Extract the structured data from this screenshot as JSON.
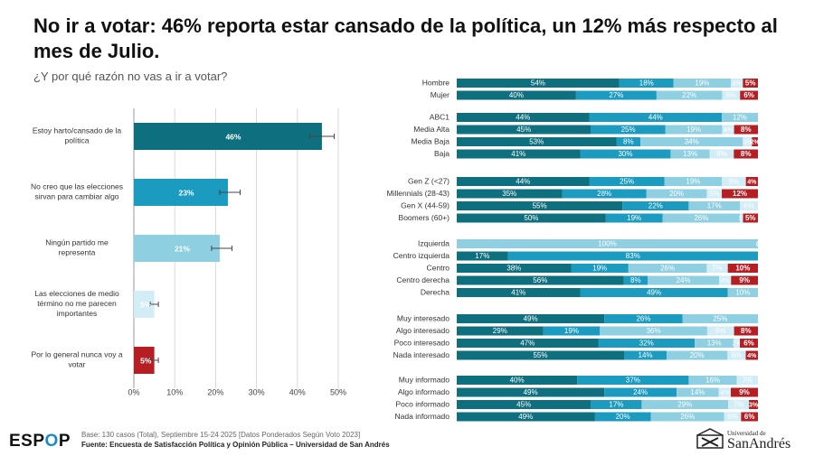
{
  "title": "No ir a votar: 46% reporta estar cansado de la política, un 12% más respecto al mes de Julio.",
  "subtitle": "¿Y por qué razón no vas a ir a votar?",
  "footer": {
    "base": "Base: 130 casos (Total), Septiembre 15-24 2025 [Datos Ponderados Según Voto 2023]",
    "source": "Fuente: Encuesta de Satisfacción Política y Opinión Pública – Universidad de San Andrés"
  },
  "logos": {
    "espop_pre": "ESP",
    "espop_o": "O",
    "espop_post": "P",
    "usa_small": "Universidad de",
    "usa_big": "SanAndrés"
  },
  "chart_data": [
    {
      "type": "bar",
      "orientation": "horizontal",
      "categories": [
        "Estoy harto/cansado de la política",
        "No creo que las elecciones sirvan para cambiar algo",
        "Ningún partido me representa",
        "Las elecciones de medio término no me parecen importantes",
        "Por lo general nunca voy a votar"
      ],
      "values": [
        46,
        23,
        21,
        5,
        5
      ],
      "labels": [
        "46%",
        "23%",
        "21%",
        "5%",
        "5%"
      ],
      "error": [
        [
          43,
          49
        ],
        [
          21,
          26
        ],
        [
          19,
          24
        ],
        [
          4,
          6
        ],
        [
          4,
          6
        ]
      ],
      "colors": [
        "#0e6f7f",
        "#1b9bbf",
        "#8ecfe2",
        "#d2edf5",
        "#b51f24"
      ],
      "label_colors": [
        "#ffffff",
        "#ffffff",
        "#ffffff",
        "#ffffff",
        "#ffffff"
      ],
      "xlim": [
        0,
        50
      ],
      "ticks": [
        "0%",
        "10%",
        "20%",
        "30%",
        "40%",
        "50%"
      ]
    },
    {
      "type": "bar",
      "orientation": "horizontal",
      "stacked": true,
      "series_names": [
        "Estoy harto/cansado de la política",
        "No creo que las elecciones sirvan para cambiar algo",
        "Ningún partido me representa",
        "Las elecciones de medio término no me parecen importantes",
        "Por lo general nunca voy a votar"
      ],
      "colors": [
        "#0e6f7f",
        "#1b9bbf",
        "#8ecfe2",
        "#d2edf5",
        "#b51f24"
      ],
      "groups": [
        {
          "rows": [
            {
              "label": "Hombre",
              "values": [
                54,
                18,
                19,
                4,
                5
              ]
            },
            {
              "label": "Mujer",
              "values": [
                40,
                27,
                22,
                6,
                6
              ]
            }
          ]
        },
        {
          "rows": [
            {
              "label": "ABC1",
              "values": [
                44,
                44,
                12,
                0,
                0
              ]
            },
            {
              "label": "Media Alta",
              "values": [
                45,
                25,
                19,
                4,
                8
              ]
            },
            {
              "label": "Media Baja",
              "values": [
                53,
                8,
                34,
                3,
                2
              ]
            },
            {
              "label": "Baja",
              "values": [
                41,
                30,
                13,
                8,
                8
              ]
            }
          ]
        },
        {
          "rows": [
            {
              "label": "Gen Z (<27)",
              "values": [
                44,
                25,
                19,
                8,
                4
              ]
            },
            {
              "label": "Millennials (28-43)",
              "values": [
                35,
                28,
                20,
                5,
                12
              ]
            },
            {
              "label": "Gen X (44-59)",
              "values": [
                55,
                22,
                17,
                6,
                0
              ]
            },
            {
              "label": "Boomers (60+)",
              "values": [
                50,
                19,
                26,
                1,
                5
              ]
            }
          ]
        },
        {
          "rows": [
            {
              "label": "Izquierda",
              "values": [
                0,
                0,
                100,
                0,
                0
              ]
            },
            {
              "label": "Centro izquierda",
              "values": [
                17,
                83,
                0,
                0,
                0
              ]
            },
            {
              "label": "Centro",
              "values": [
                38,
                19,
                26,
                7,
                10
              ]
            },
            {
              "label": "Centro derecha",
              "values": [
                56,
                8,
                24,
                4,
                9
              ]
            },
            {
              "label": "Derecha",
              "values": [
                41,
                49,
                10,
                0,
                0
              ]
            }
          ]
        },
        {
          "rows": [
            {
              "label": "Muy interesado",
              "values": [
                49,
                26,
                25,
                0,
                0
              ]
            },
            {
              "label": "Algo interesado",
              "values": [
                29,
                19,
                36,
                9,
                8
              ]
            },
            {
              "label": "Poco interesado",
              "values": [
                47,
                32,
                13,
                2,
                6
              ]
            },
            {
              "label": "Nada interesado",
              "values": [
                55,
                14,
                20,
                6,
                4
              ]
            }
          ]
        },
        {
          "rows": [
            {
              "label": "Muy informado",
              "values": [
                40,
                37,
                16,
                7,
                0
              ]
            },
            {
              "label": "Algo informado",
              "values": [
                49,
                24,
                14,
                4,
                9
              ]
            },
            {
              "label": "Poco informado",
              "values": [
                45,
                17,
                29,
                7,
                3
              ]
            },
            {
              "label": "Nada informado",
              "values": [
                49,
                20,
                26,
                6,
                6
              ]
            }
          ]
        }
      ],
      "xlim": [
        0,
        100
      ]
    }
  ]
}
